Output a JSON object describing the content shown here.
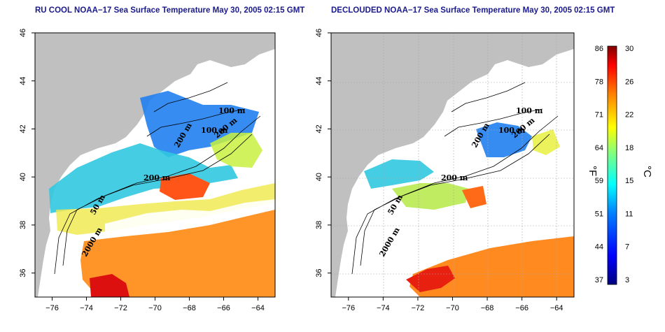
{
  "left_panel": {
    "title": "RU COOL NOAA−17 Sea Surface Temperature May 30, 2005 02:15 GMT",
    "contour_labels": [
      "100 m",
      "100 m",
      "200 m",
      "200 m",
      "200 m",
      "2000 m",
      "50 m"
    ]
  },
  "right_panel": {
    "title": "DECLOUDED NOAA−17 Sea Surface Temperature May 30, 2005 02:15 GMT",
    "contour_labels": [
      "100 m",
      "100 m",
      "200 m",
      "200 m",
      "200 m",
      "2000 m",
      "50 m"
    ]
  },
  "axes": {
    "x_ticks": [
      "−76",
      "−74",
      "−72",
      "−70",
      "−68",
      "−66",
      "−64"
    ],
    "y_ticks": [
      "46",
      "44",
      "42",
      "40",
      "38",
      "36"
    ],
    "lon_range": [
      -77,
      -63
    ],
    "lat_range": [
      35,
      46
    ]
  },
  "colorbar": {
    "fahrenheit_label": "°F",
    "celsius_label": "°C",
    "fahrenheit_ticks": [
      "86",
      "78",
      "71",
      "64",
      "59",
      "51",
      "44",
      "37"
    ],
    "celsius_ticks": [
      "30",
      "26",
      "22",
      "18",
      "15",
      "11",
      "7",
      "3"
    ],
    "colors": [
      "#00007f",
      "#0000ff",
      "#0080ff",
      "#00ffff",
      "#80ff80",
      "#ffff00",
      "#ff8000",
      "#ff0000",
      "#800000"
    ]
  },
  "colors": {
    "land": "#c0c0c0",
    "title": "#1a1a8c"
  }
}
